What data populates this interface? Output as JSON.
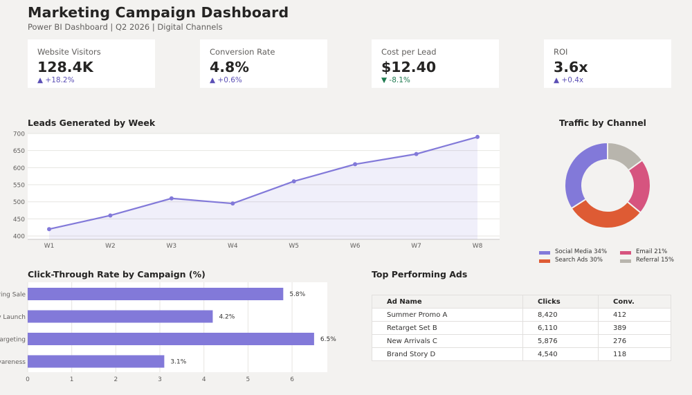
{
  "header": {
    "title": "Marketing Campaign Dashboard",
    "subtitle": "Power BI Dashboard  |  Q2 2026  |  Digital Channels"
  },
  "kpis": [
    {
      "label": "Website Visitors",
      "value": "128.4K",
      "delta": "▲ +18.2%",
      "direction": "up"
    },
    {
      "label": "Conversion Rate",
      "value": "4.8%",
      "delta": "▲ +0.6%",
      "direction": "up"
    },
    {
      "label": "Cost per Lead",
      "value": "$12.40",
      "delta": "▼ -8.1%",
      "direction": "down"
    },
    {
      "label": "ROI",
      "value": "3.6x",
      "delta": "▲ +0.4x",
      "direction": "up"
    }
  ],
  "colors": {
    "accent": "#8279d9",
    "social": "#8279d9",
    "search": "#de5b34",
    "email": "#d6547f",
    "referral": "#b8b5ad",
    "up": "#5b4fb5",
    "down": "#1e7a4f"
  },
  "chart_data": [
    {
      "type": "area",
      "title": "Leads Generated by Week",
      "x": [
        "W1",
        "W2",
        "W3",
        "W4",
        "W5",
        "W6",
        "W7",
        "W8"
      ],
      "values": [
        420,
        460,
        510,
        495,
        560,
        610,
        640,
        690
      ],
      "ylim": [
        390,
        700
      ],
      "yticks": [
        400,
        450,
        500,
        550,
        600,
        650,
        700
      ],
      "grid": true
    },
    {
      "type": "pie",
      "title": "Traffic by Channel",
      "slices": [
        {
          "label": "Social Media",
          "value": 34,
          "legend": "Social Media  34%"
        },
        {
          "label": "Search Ads",
          "value": 30,
          "legend": "Search Ads  30%"
        },
        {
          "label": "Email",
          "value": 21,
          "legend": "Email  21%"
        },
        {
          "label": "Referral",
          "value": 15,
          "legend": "Referral  15%"
        }
      ]
    },
    {
      "type": "bar",
      "title": "Click-Through Rate by Campaign (%)",
      "categories": [
        "ring Sale",
        "v Launch",
        "argeting",
        "vareness"
      ],
      "values": [
        5.8,
        4.2,
        6.5,
        3.1
      ],
      "value_labels": [
        "5.8%",
        "4.2%",
        "6.5%",
        "3.1%"
      ],
      "xlim": [
        0,
        6.8
      ],
      "xticks": [
        0,
        1,
        2,
        3,
        4,
        5,
        6
      ],
      "grid": true
    }
  ],
  "ads": {
    "title": "Top Performing Ads",
    "columns": [
      "Ad Name",
      "Clicks",
      "Conv."
    ],
    "rows": [
      [
        "Summer Promo A",
        "8,420",
        "412"
      ],
      [
        "Retarget Set B",
        "6,110",
        "389"
      ],
      [
        "New Arrivals C",
        "5,876",
        "276"
      ],
      [
        "Brand Story D",
        "4,540",
        "118"
      ]
    ]
  }
}
